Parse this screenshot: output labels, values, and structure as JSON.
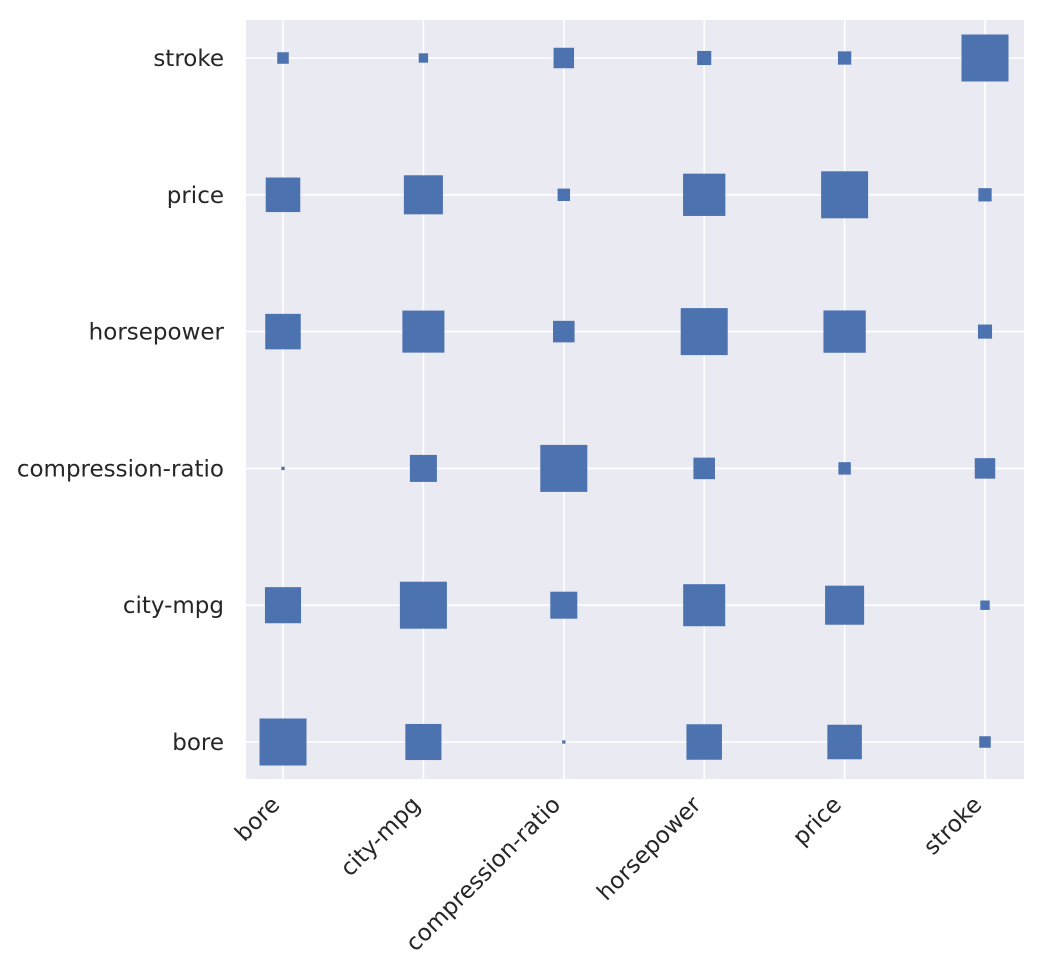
{
  "chart_data": {
    "type": "heatmap",
    "title": "",
    "xlabel": "",
    "ylabel": "",
    "x_categories": [
      "bore",
      "city-mpg",
      "compression-ratio",
      "horsepower",
      "price",
      "stroke"
    ],
    "y_categories": [
      "bore",
      "city-mpg",
      "compression-ratio",
      "horsepower",
      "price",
      "stroke"
    ],
    "size_encoding": "absolute correlation",
    "max_size_value": 1.0,
    "cells": [
      {
        "x": "bore",
        "y": "bore",
        "value": 1.0
      },
      {
        "x": "city-mpg",
        "y": "bore",
        "value": 0.59
      },
      {
        "x": "compression-ratio",
        "y": "bore",
        "value": 0.005
      },
      {
        "x": "horsepower",
        "y": "bore",
        "value": 0.57
      },
      {
        "x": "price",
        "y": "bore",
        "value": 0.54
      },
      {
        "x": "stroke",
        "y": "bore",
        "value": 0.06
      },
      {
        "x": "bore",
        "y": "city-mpg",
        "value": 0.59
      },
      {
        "x": "city-mpg",
        "y": "city-mpg",
        "value": 1.0
      },
      {
        "x": "compression-ratio",
        "y": "city-mpg",
        "value": 0.33
      },
      {
        "x": "horsepower",
        "y": "city-mpg",
        "value": 0.8
      },
      {
        "x": "price",
        "y": "city-mpg",
        "value": 0.69
      },
      {
        "x": "stroke",
        "y": "city-mpg",
        "value": 0.04
      },
      {
        "x": "bore",
        "y": "compression-ratio",
        "value": 0.005
      },
      {
        "x": "city-mpg",
        "y": "compression-ratio",
        "value": 0.33
      },
      {
        "x": "compression-ratio",
        "y": "compression-ratio",
        "value": 1.0
      },
      {
        "x": "horsepower",
        "y": "compression-ratio",
        "value": 0.21
      },
      {
        "x": "price",
        "y": "compression-ratio",
        "value": 0.07
      },
      {
        "x": "stroke",
        "y": "compression-ratio",
        "value": 0.19
      },
      {
        "x": "bore",
        "y": "horsepower",
        "value": 0.57
      },
      {
        "x": "city-mpg",
        "y": "horsepower",
        "value": 0.8
      },
      {
        "x": "compression-ratio",
        "y": "horsepower",
        "value": 0.21
      },
      {
        "x": "horsepower",
        "y": "horsepower",
        "value": 1.0
      },
      {
        "x": "price",
        "y": "horsepower",
        "value": 0.81
      },
      {
        "x": "stroke",
        "y": "horsepower",
        "value": 0.09
      },
      {
        "x": "bore",
        "y": "price",
        "value": 0.54
      },
      {
        "x": "city-mpg",
        "y": "price",
        "value": 0.69
      },
      {
        "x": "compression-ratio",
        "y": "price",
        "value": 0.07
      },
      {
        "x": "horsepower",
        "y": "price",
        "value": 0.81
      },
      {
        "x": "price",
        "y": "price",
        "value": 1.0
      },
      {
        "x": "stroke",
        "y": "price",
        "value": 0.08
      },
      {
        "x": "bore",
        "y": "stroke",
        "value": 0.06
      },
      {
        "x": "city-mpg",
        "y": "stroke",
        "value": 0.04
      },
      {
        "x": "compression-ratio",
        "y": "stroke",
        "value": 0.19
      },
      {
        "x": "horsepower",
        "y": "stroke",
        "value": 0.09
      },
      {
        "x": "price",
        "y": "stroke",
        "value": 0.08
      },
      {
        "x": "stroke",
        "y": "stroke",
        "value": 1.0
      }
    ],
    "colors": {
      "plot_background": "#eaeaf2",
      "grid": "#ffffff",
      "marker": "#4c72b0",
      "label_text": "#262626"
    },
    "grid": true,
    "legend": "none"
  }
}
